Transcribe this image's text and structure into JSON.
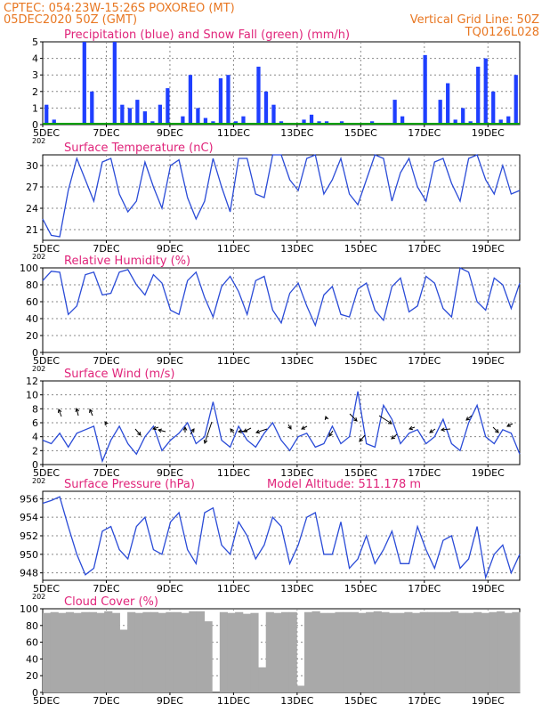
{
  "header": {
    "line1_left": "CPTEC:   054:23W-15:26S   POXOREO (MT)",
    "line2_left": "05DEC2020 50Z (GMT)",
    "line2_right": "Vertical Grid Line: 50Z",
    "line3_right": "TQ0126L028"
  },
  "x_axis": {
    "tick_labels": [
      "5DEC",
      "7DEC",
      "9DEC",
      "11DEC",
      "13DEC",
      "15DEC",
      "17DEC",
      "19DEC"
    ],
    "year_stub": "202"
  },
  "colors": {
    "precip": "#1f3fff",
    "snow": "#00a000",
    "line": "#2a4bd7",
    "title": "#e0247a",
    "header": "#e87722",
    "cloud": "#a9a9a9"
  },
  "chart_data": [
    {
      "type": "bar",
      "title": "Precipitation (blue) and Snow Fall (green) (mm/h)",
      "x": {
        "start": "05DEC2020 00Z",
        "end": "20DEC2020 00Z",
        "step_hours": 6
      },
      "ylim": [
        0,
        5
      ],
      "yticks": [
        "0",
        "1",
        "2",
        "3",
        "4",
        "5"
      ],
      "series": [
        {
          "values": [
            1.2,
            0.3,
            0,
            0,
            0,
            5.0,
            2.0,
            0,
            0,
            5.0,
            1.2,
            1.0,
            1.5,
            0.8,
            0.2,
            1.2,
            2.2,
            0,
            0.5,
            3.0,
            1.0,
            0.4,
            0.2,
            2.8,
            3.0,
            0.2,
            0.5,
            0,
            3.5,
            2.0,
            1.2,
            0.2,
            0,
            0.1,
            0.3,
            0.6,
            0.2,
            0.2,
            0,
            0.2,
            0,
            0,
            0,
            0.2,
            0,
            0,
            1.5,
            0.5,
            0,
            0,
            4.2,
            0.1,
            1.5,
            2.5,
            0.3,
            1.0,
            0.2,
            3.5,
            4.0,
            2.0,
            0.3,
            0.5,
            3.0
          ]
        }
      ]
    },
    {
      "type": "line",
      "title": "Surface Temperature (nC)",
      "ylim": [
        19.5,
        31.5
      ],
      "yticks": [
        "21",
        "24",
        "27",
        "30"
      ],
      "series": [
        {
          "values": [
            22.5,
            20.2,
            20.0,
            26.5,
            31.0,
            28.0,
            25.0,
            30.5,
            31.0,
            26.0,
            23.5,
            25.0,
            30.5,
            27.0,
            24.0,
            30.0,
            30.8,
            25.5,
            22.5,
            25.0,
            31.0,
            27.0,
            23.5,
            31.0,
            31.0,
            26.0,
            25.5,
            31.5,
            31.5,
            28.0,
            26.5,
            31.0,
            31.5,
            26.0,
            28.0,
            31.0,
            26.0,
            24.5,
            28.0,
            31.5,
            31.0,
            25.0,
            29.0,
            31.0,
            27.0,
            25.0,
            30.5,
            31.0,
            27.5,
            25.0,
            31.0,
            31.5,
            28.0,
            26.0,
            30.0,
            26.0,
            26.5
          ]
        }
      ]
    },
    {
      "type": "line",
      "title": "Relative Humidity (%)",
      "ylim": [
        0,
        100
      ],
      "yticks": [
        "0",
        "20",
        "40",
        "60",
        "80",
        "100"
      ],
      "series": [
        {
          "values": [
            85,
            96,
            95,
            45,
            55,
            92,
            95,
            68,
            70,
            95,
            98,
            80,
            68,
            92,
            82,
            50,
            45,
            85,
            95,
            65,
            42,
            78,
            90,
            72,
            45,
            85,
            90,
            50,
            35,
            70,
            82,
            55,
            32,
            68,
            78,
            45,
            42,
            75,
            82,
            50,
            38,
            78,
            88,
            48,
            55,
            90,
            82,
            52,
            42,
            100,
            95,
            60,
            50,
            88,
            80,
            52,
            82
          ]
        }
      ]
    },
    {
      "type": "line",
      "title": "Surface Wind (m/s)",
      "ylim": [
        0,
        12
      ],
      "yticks": [
        "0",
        "2",
        "4",
        "6",
        "8",
        "10",
        "12"
      ],
      "series": [
        {
          "values": [
            3.5,
            3.0,
            4.5,
            2.5,
            4.5,
            5.0,
            5.5,
            0.5,
            3.5,
            5.5,
            3.0,
            1.5,
            4.0,
            5.5,
            2.0,
            3.5,
            4.5,
            6.0,
            3.0,
            4.0,
            9.0,
            3.5,
            2.5,
            5.5,
            3.5,
            2.5,
            4.5,
            6.0,
            3.5,
            2.0,
            4.0,
            4.5,
            2.5,
            3.0,
            5.5,
            3.0,
            4.0,
            10.5,
            3.0,
            2.5,
            8.5,
            6.5,
            3.0,
            4.5,
            5.0,
            3.0,
            4.0,
            6.5,
            3.0,
            2.0,
            6.0,
            8.5,
            4.0,
            3.0,
            5.0,
            4.5,
            1.5
          ]
        }
      ]
    },
    {
      "type": "line",
      "title": "Surface Pressure (hPa)",
      "annotation": "Model Altitude: 511.178  m",
      "ylim": [
        947.2,
        956.8
      ],
      "yticks": [
        "948",
        "950",
        "952",
        "954",
        "956"
      ],
      "series": [
        {
          "values": [
            955.5,
            955.8,
            956.2,
            953.0,
            950.0,
            947.8,
            948.5,
            952.5,
            953.0,
            950.5,
            949.5,
            953.0,
            954.0,
            950.5,
            950.0,
            953.5,
            954.5,
            950.5,
            949.0,
            954.5,
            955.0,
            951.0,
            950.0,
            953.5,
            952.0,
            949.5,
            951.0,
            954.0,
            953.0,
            949.0,
            951.0,
            954.0,
            954.5,
            950.0,
            950.0,
            953.5,
            948.5,
            949.5,
            952.0,
            949.0,
            950.5,
            952.5,
            949.0,
            949.0,
            953.0,
            950.5,
            948.5,
            951.5,
            952.0,
            948.5,
            949.5,
            953.0,
            947.5,
            950.0,
            951.0,
            948.0,
            950.0
          ]
        }
      ]
    },
    {
      "type": "bar",
      "title": "Cloud Cover (%)",
      "ylim": [
        0,
        100
      ],
      "yticks": [
        "0",
        "20",
        "40",
        "60",
        "80",
        "100"
      ],
      "series": [
        {
          "values": [
            95,
            96,
            95,
            96,
            95,
            96,
            96,
            95,
            97,
            95,
            75,
            96,
            95,
            96,
            96,
            95,
            96,
            96,
            95,
            97,
            97,
            85,
            0,
            96,
            95,
            96,
            94,
            95,
            30,
            96,
            95,
            96,
            96,
            8,
            96,
            97,
            95,
            95,
            96,
            96,
            96,
            95,
            96,
            97,
            96,
            95,
            95,
            96,
            95,
            96,
            96,
            96,
            96,
            97,
            95,
            95,
            96,
            95,
            96,
            97,
            95,
            96
          ]
        }
      ]
    }
  ]
}
